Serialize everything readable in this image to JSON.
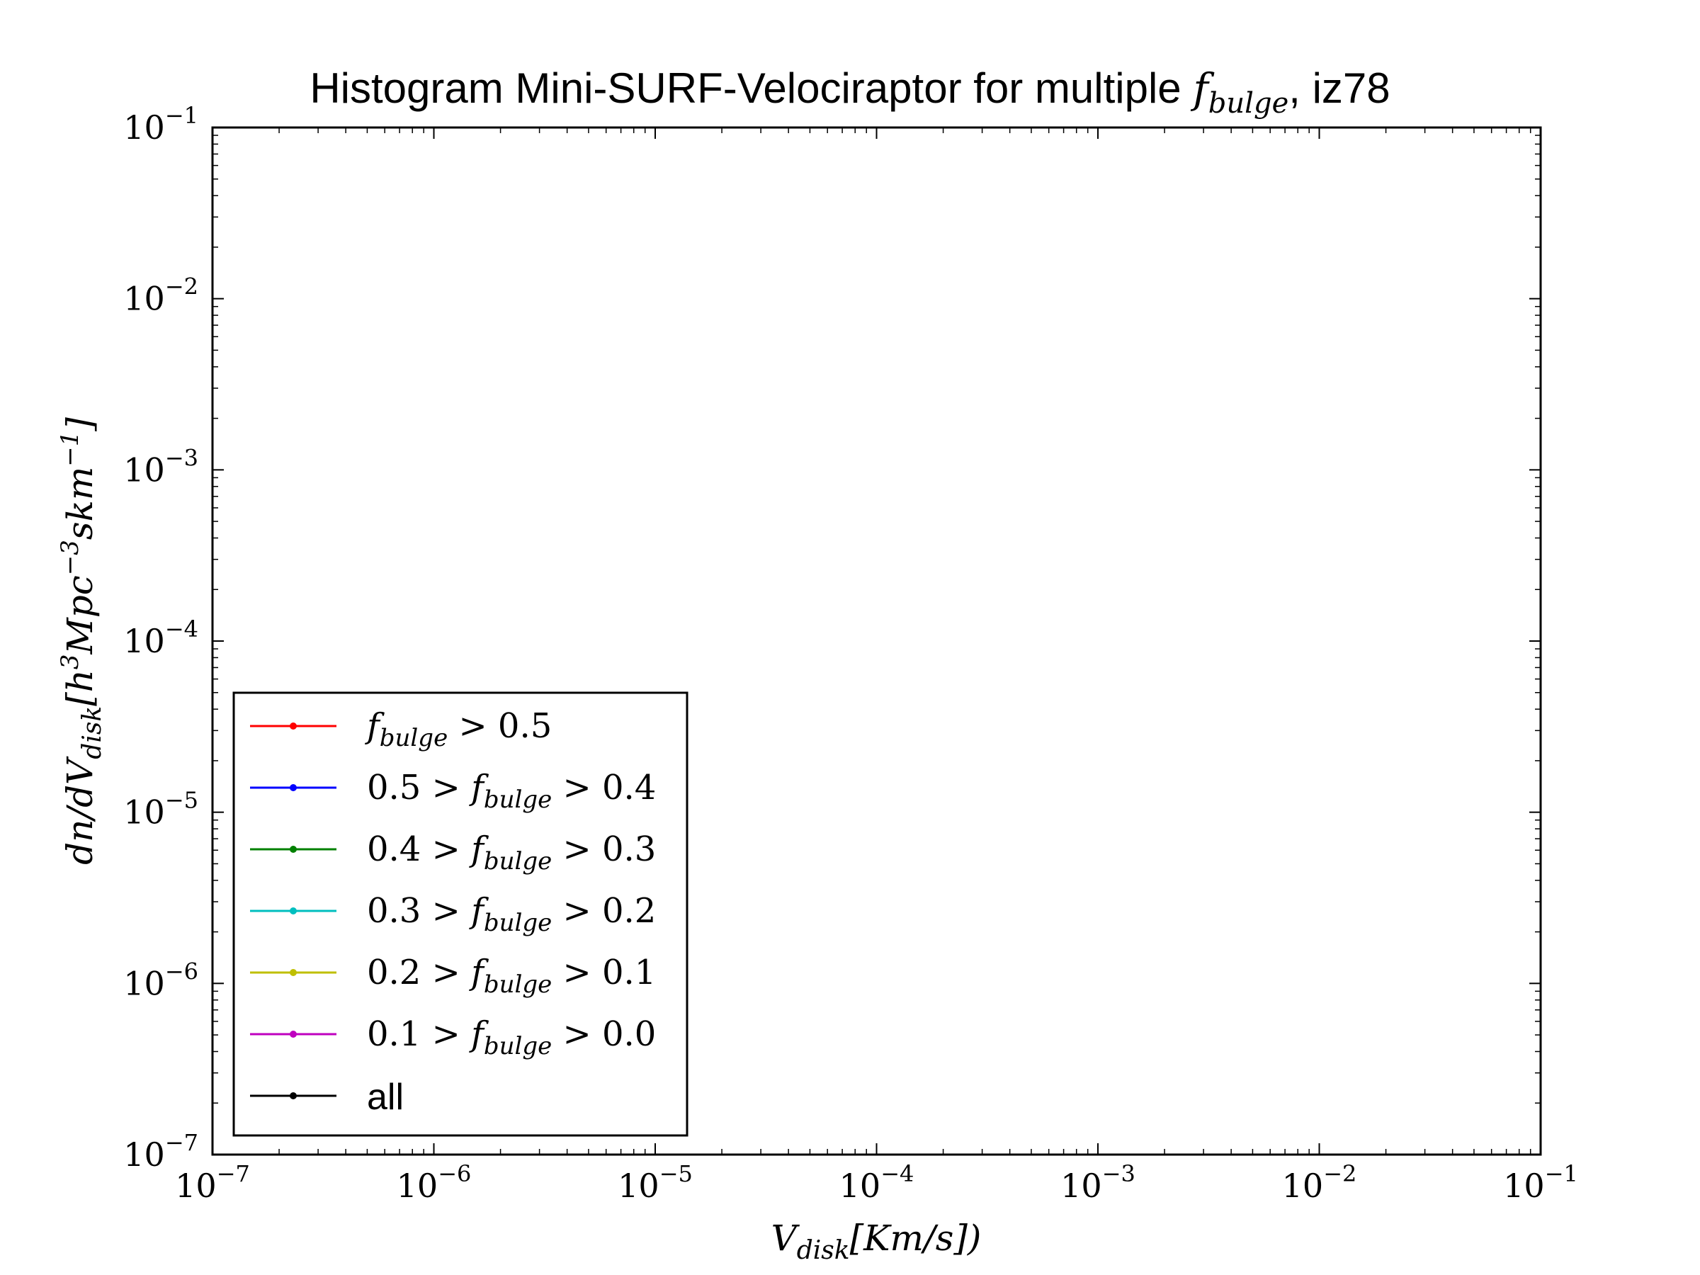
{
  "chart_data": {
    "type": "line",
    "title": {
      "prefix": "Histogram Mini-SURF-Velociraptor for multiple ",
      "math_base": "f",
      "math_sub": "bulge",
      "suffix": ", iz78"
    },
    "xlabel": {
      "base": "V",
      "sub": "disk",
      "rest": "[Km/s])"
    },
    "ylabel": {
      "prefix": "dn/dV",
      "sub": "disk",
      "rest": "[h",
      "sup1": "3",
      "mid": "Mpc",
      "sup2": "−3",
      "tail": "skm",
      "sup3": "−1",
      "end": "]"
    },
    "x_scale": "log",
    "y_scale": "log",
    "xlim": [
      1e-07,
      0.1
    ],
    "ylim": [
      1e-07,
      0.1
    ],
    "x_ticks": [
      {
        "base": "10",
        "exp": "−7"
      },
      {
        "base": "10",
        "exp": "−6"
      },
      {
        "base": "10",
        "exp": "−5"
      },
      {
        "base": "10",
        "exp": "−4"
      },
      {
        "base": "10",
        "exp": "−3"
      },
      {
        "base": "10",
        "exp": "−2"
      },
      {
        "base": "10",
        "exp": "−1"
      }
    ],
    "y_ticks": [
      {
        "base": "10",
        "exp": "−7"
      },
      {
        "base": "10",
        "exp": "−6"
      },
      {
        "base": "10",
        "exp": "−5"
      },
      {
        "base": "10",
        "exp": "−4"
      },
      {
        "base": "10",
        "exp": "−3"
      },
      {
        "base": "10",
        "exp": "−2"
      },
      {
        "base": "10",
        "exp": "−1"
      }
    ],
    "grid": false,
    "legend_position": "lower-left",
    "series": [
      {
        "name": "fbulge > 0.5",
        "pre": "",
        "post": " > 0.5",
        "color": "#ff0000",
        "values": []
      },
      {
        "name": "0.5 > fbulge > 0.4",
        "pre": "0.5 > ",
        "post": " > 0.4",
        "color": "#0000ff",
        "values": []
      },
      {
        "name": "0.4 > fbulge > 0.3",
        "pre": "0.4 > ",
        "post": " > 0.3",
        "color": "#008000",
        "values": []
      },
      {
        "name": "0.3 > fbulge > 0.2",
        "pre": "0.3 > ",
        "post": " > 0.2",
        "color": "#00bfbf",
        "values": []
      },
      {
        "name": "0.2 > fbulge > 0.1",
        "pre": "0.2 > ",
        "post": " > 0.1",
        "color": "#bfbf00",
        "values": []
      },
      {
        "name": "0.1 > fbulge > 0.0",
        "pre": "0.1 > ",
        "post": " > 0.0",
        "color": "#bf00bf",
        "values": []
      },
      {
        "name": "all",
        "pre": "",
        "post": "",
        "color": "#000000",
        "values": []
      }
    ],
    "legend_math_base": "f",
    "legend_math_sub": "bulge"
  }
}
